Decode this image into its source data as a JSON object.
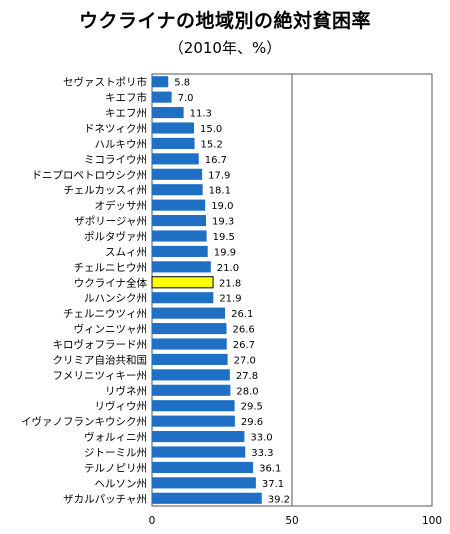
{
  "chart_data": {
    "type": "bar",
    "orientation": "horizontal",
    "title": "ウクライナの地域別の絶対貧困率",
    "subtitle": "（2010年、%）",
    "categories": [
      "セヴァストポリ市",
      "キエフ市",
      "キエフ州",
      "ドネツィク州",
      "ハルキウ州",
      "ミコライウ州",
      "ドニプロペトロウシク州",
      "チェルカッスィ州",
      "オデッサ州",
      "ザポリージャ州",
      "ポルタヴァ州",
      "スムィ州",
      "チェルニヒウ州",
      "ウクライナ全体",
      "ルハンシク州",
      "チェルニウツィ州",
      "ヴィンニツャ州",
      "キロヴォフラード州",
      "クリミア自治共和国",
      "フメリニツィキー州",
      "リヴネ州",
      "リヴィウ州",
      "イヴァノフランキウシク州",
      "ヴォルィニ州",
      "ジトーミル州",
      "テルノピリ州",
      "ヘルソン州",
      "ザカルパッチャ州"
    ],
    "values": [
      5.8,
      7.0,
      11.3,
      15.0,
      15.2,
      16.7,
      17.9,
      18.1,
      19.0,
      19.3,
      19.5,
      19.9,
      21.0,
      21.8,
      21.9,
      26.1,
      26.6,
      26.7,
      27.0,
      27.8,
      28.0,
      29.5,
      29.6,
      33.0,
      33.3,
      36.1,
      37.1,
      39.2
    ],
    "value_labels": [
      "5.8",
      "7.0",
      "11.3",
      "15.0",
      "15.2",
      "16.7",
      "17.9",
      "18.1",
      "19.0",
      "19.3",
      "19.5",
      "19.9",
      "21.0",
      "21.8",
      "21.9",
      "26.1",
      "26.6",
      "26.7",
      "27.0",
      "27.8",
      "28.0",
      "29.5",
      "29.6",
      "33.0",
      "33.3",
      "36.1",
      "37.1",
      "39.2"
    ],
    "highlight_category": "ウクライナ全体",
    "xlim": [
      0,
      100
    ],
    "xticks": [
      "0",
      "50",
      "100"
    ],
    "grid": "vertical gridline at 50",
    "colors": {
      "bar": "#1f6fc5",
      "highlight": "#ffff00",
      "highlight_border": "#000000",
      "axis": "#555555"
    }
  }
}
